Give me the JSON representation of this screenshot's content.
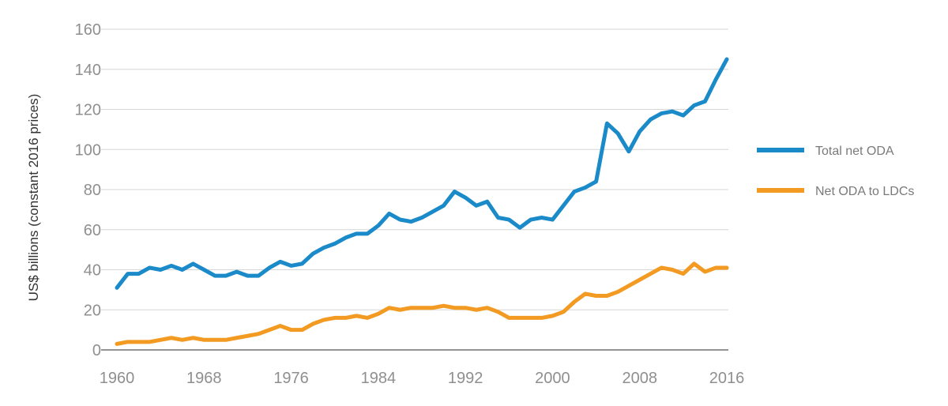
{
  "chart_data": {
    "type": "line",
    "ylabel": "US$ billions (constant 2016 prices)",
    "xlabel": "",
    "title": "",
    "xlim": [
      1960,
      2016
    ],
    "ylim": [
      0,
      160
    ],
    "x_ticks": [
      1960,
      1968,
      1976,
      1984,
      1992,
      2000,
      2008,
      2016
    ],
    "y_ticks": [
      0,
      20,
      40,
      60,
      80,
      100,
      120,
      140,
      160
    ],
    "grid": "horizontal",
    "legend_position": "right",
    "x": [
      1960,
      1961,
      1962,
      1963,
      1964,
      1965,
      1966,
      1967,
      1968,
      1969,
      1970,
      1971,
      1972,
      1973,
      1974,
      1975,
      1976,
      1977,
      1978,
      1979,
      1980,
      1981,
      1982,
      1983,
      1984,
      1985,
      1986,
      1987,
      1988,
      1989,
      1990,
      1991,
      1992,
      1993,
      1994,
      1995,
      1996,
      1997,
      1998,
      1999,
      2000,
      2001,
      2002,
      2003,
      2004,
      2005,
      2006,
      2007,
      2008,
      2009,
      2010,
      2011,
      2012,
      2013,
      2014,
      2015,
      2016
    ],
    "series": [
      {
        "name": "Total net ODA",
        "color": "#1b8ac9",
        "values": [
          31,
          38,
          38,
          41,
          40,
          42,
          40,
          43,
          40,
          37,
          37,
          39,
          37,
          37,
          41,
          44,
          42,
          43,
          48,
          51,
          53,
          56,
          58,
          58,
          62,
          68,
          65,
          64,
          66,
          69,
          72,
          79,
          76,
          72,
          74,
          66,
          65,
          61,
          65,
          66,
          65,
          72,
          79,
          81,
          84,
          113,
          108,
          99,
          109,
          115,
          118,
          119,
          117,
          122,
          124,
          135,
          145
        ]
      },
      {
        "name": "Net ODA to LDCs",
        "color": "#f29a22",
        "values": [
          3,
          4,
          4,
          4,
          5,
          6,
          5,
          6,
          5,
          5,
          5,
          6,
          7,
          8,
          10,
          12,
          10,
          10,
          13,
          15,
          16,
          16,
          17,
          16,
          18,
          21,
          20,
          21,
          21,
          21,
          22,
          21,
          21,
          20,
          21,
          19,
          16,
          16,
          16,
          16,
          17,
          19,
          24,
          28,
          27,
          27,
          29,
          32,
          35,
          38,
          41,
          40,
          38,
          43,
          39,
          41,
          41
        ]
      }
    ]
  }
}
